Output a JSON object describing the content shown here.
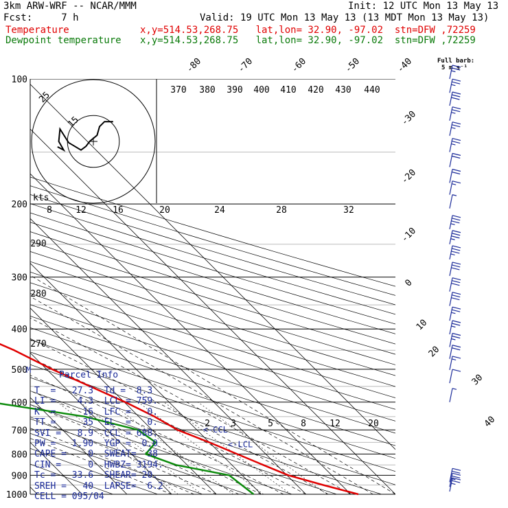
{
  "header": {
    "model": "3km ARW-WRF -- NCAR/MMM",
    "init": "Init: 12 UTC Mon 13 May 13",
    "fcst": "Fcst:     7 h",
    "valid": "Valid: 19 UTC Mon 13 May 13 (13 MDT Mon 13 May 13)",
    "temp_label": "Temperature",
    "temp_loc": "x,y=514.53,268.75   lat,lon= 32.90, -97.02  stn=DFW ,72259",
    "dew_label": "Dewpoint temperature",
    "dew_loc": "x,y=514.53,268.75   lat,lon= 32.90, -97.02  stn=DFW ,72259",
    "barb_title": "Full barb:",
    "barb_units": "5 m s⁻¹"
  },
  "colors": {
    "temperature": "#e00000",
    "dewpoint": "#0a8a0a",
    "info": "#1a2a99",
    "barbs": "#1a2a99"
  },
  "chart_data": {
    "type": "skew-t",
    "pressure_levels": [
      100,
      200,
      300,
      400,
      500,
      600,
      700,
      800,
      900,
      1000
    ],
    "isotherm_labels": [
      {
        "t": -80,
        "text": "-80"
      },
      {
        "t": -70,
        "text": "-70"
      },
      {
        "t": -60,
        "text": "-60"
      },
      {
        "t": -50,
        "text": "-50"
      },
      {
        "t": -40,
        "text": "-40"
      },
      {
        "t": -30,
        "text": "-30"
      },
      {
        "t": -20,
        "text": "-20"
      },
      {
        "t": -10,
        "text": "-10"
      },
      {
        "t": 0,
        "text": "0"
      },
      {
        "t": 10,
        "text": "10"
      },
      {
        "t": 20,
        "text": "20"
      },
      {
        "t": 30,
        "text": "30"
      },
      {
        "t": 40,
        "text": "40"
      }
    ],
    "theta_labels": [
      "370",
      "380",
      "390",
      "400",
      "410",
      "420",
      "430",
      "440"
    ],
    "theta_side_labels": [
      "290",
      "280",
      "270"
    ],
    "mixing_ratio_labels": [
      "2",
      "3",
      "5",
      "8",
      "12",
      "20"
    ],
    "hodograph": {
      "ring_labels": [
        "25",
        "15"
      ],
      "speed_scale_title": "kts",
      "speed_scale": [
        "8",
        "12",
        "16",
        "20",
        "24",
        "28",
        "32"
      ],
      "trace_kts": [
        [
          -14.5,
          -2.2
        ],
        [
          -12,
          -3.5
        ],
        [
          -14,
          0
        ],
        [
          -13.5,
          5
        ],
        [
          -10,
          -0.5
        ],
        [
          -5,
          -3.5
        ],
        [
          -3,
          -2
        ],
        [
          -1.5,
          0
        ],
        [
          1.5,
          2.5
        ],
        [
          2.5,
          6
        ],
        [
          4.5,
          8
        ],
        [
          8,
          8
        ]
      ]
    },
    "temperature": [
      {
        "p": 1000,
        "t": 31.7
      },
      {
        "p": 950,
        "t": 25.9
      },
      {
        "p": 900,
        "t": 20.3
      },
      {
        "p": 850,
        "t": 17.0
      },
      {
        "p": 800,
        "t": 13.6
      },
      {
        "p": 750,
        "t": 10.0
      },
      {
        "p": 700,
        "t": 5.7
      },
      {
        "p": 650,
        "t": 3.5
      },
      {
        "p": 600,
        "t": 0.2
      },
      {
        "p": 550,
        "t": -4.1
      },
      {
        "p": 500,
        "t": -8.8
      },
      {
        "p": 450,
        "t": -13.0
      },
      {
        "p": 400,
        "t": -19.3
      },
      {
        "p": 350,
        "t": -25.8
      },
      {
        "p": 300,
        "t": -34.0
      },
      {
        "p": 250,
        "t": -43.1
      },
      {
        "p": 225,
        "t": -49.3
      },
      {
        "p": 200,
        "t": -56.7
      },
      {
        "p": 175,
        "t": -57.5
      },
      {
        "p": 150,
        "t": -59.9
      },
      {
        "p": 125,
        "t": -62.7
      },
      {
        "p": 100,
        "t": -65.8
      }
    ],
    "dewpoint": [
      {
        "p": 1000,
        "t": 8.3
      },
      {
        "p": 900,
        "t": 7.1
      },
      {
        "p": 850,
        "t": -2.5
      },
      {
        "p": 800,
        "t": -6.8
      },
      {
        "p": 750,
        "t": -2.0
      },
      {
        "p": 700,
        "t": -3.1
      },
      {
        "p": 650,
        "t": -12.1
      },
      {
        "p": 600,
        "t": -29.8
      },
      {
        "p": 550,
        "t": -35.4
      },
      {
        "p": 500,
        "t": -36.0
      },
      {
        "p": 475,
        "t": -38.2
      },
      {
        "p": 450,
        "t": -44.1
      },
      {
        "p": 400,
        "t": -41.0
      },
      {
        "p": 350,
        "t": -47.6
      },
      {
        "p": 320,
        "t": -57.1
      },
      {
        "p": 290,
        "t": -65.1
      },
      {
        "p": 260,
        "t": -66.7
      },
      {
        "p": 230,
        "t": -70.5
      },
      {
        "p": 200,
        "t": -75.8
      },
      {
        "p": 175,
        "t": -79.1
      },
      {
        "p": 150,
        "t": -81.9
      },
      {
        "p": 125,
        "t": -85.5
      },
      {
        "p": 100,
        "t": -88.8
      }
    ],
    "annotations": [
      {
        "p": 710,
        "t": 10.8,
        "text": "<-CCL"
      },
      {
        "p": 770,
        "t": 13.1,
        "text": "<-LCL"
      },
      {
        "p": 510,
        "t": -15.4,
        "text": "M"
      }
    ],
    "wind_barbs": [
      {
        "p": 100,
        "speed": 12.5,
        "flags": 0,
        "full": 2,
        "half": 1
      },
      {
        "p": 108,
        "speed": 12.5,
        "flags": 0,
        "full": 2,
        "half": 1
      },
      {
        "p": 116,
        "speed": 15,
        "flags": 0,
        "full": 3,
        "half": 0
      },
      {
        "p": 126,
        "speed": 12.5,
        "flags": 0,
        "full": 2,
        "half": 1
      },
      {
        "p": 137,
        "speed": 12.5,
        "flags": 0,
        "full": 2,
        "half": 1
      },
      {
        "p": 150,
        "speed": 12.5,
        "flags": 0,
        "full": 2,
        "half": 1
      },
      {
        "p": 163,
        "speed": 10,
        "flags": 0,
        "full": 2,
        "half": 0
      },
      {
        "p": 178,
        "speed": 10,
        "flags": 0,
        "full": 2,
        "half": 0
      },
      {
        "p": 190,
        "speed": 7.5,
        "flags": 0,
        "full": 1,
        "half": 1
      },
      {
        "p": 205,
        "speed": 2.5,
        "flags": 0,
        "full": 0,
        "half": 1
      },
      {
        "p": 230,
        "speed": 17.5,
        "flags": 0,
        "full": 3,
        "half": 1
      },
      {
        "p": 250,
        "speed": 17.5,
        "flags": 0,
        "full": 3,
        "half": 1
      },
      {
        "p": 272,
        "speed": 17.5,
        "flags": 0,
        "full": 3,
        "half": 1
      },
      {
        "p": 298,
        "speed": 15,
        "flags": 0,
        "full": 3,
        "half": 0
      },
      {
        "p": 325,
        "speed": 15,
        "flags": 0,
        "full": 3,
        "half": 0
      },
      {
        "p": 352,
        "speed": 15,
        "flags": 0,
        "full": 3,
        "half": 0
      },
      {
        "p": 382,
        "speed": 12.5,
        "flags": 0,
        "full": 2,
        "half": 1
      },
      {
        "p": 412,
        "speed": 12.5,
        "flags": 0,
        "full": 2,
        "half": 1
      },
      {
        "p": 442,
        "speed": 12.5,
        "flags": 0,
        "full": 2,
        "half": 1
      },
      {
        "p": 472,
        "speed": 10,
        "flags": 0,
        "full": 2,
        "half": 0
      },
      {
        "p": 502,
        "speed": 7.5,
        "flags": 0,
        "full": 1,
        "half": 1
      },
      {
        "p": 540,
        "speed": 5,
        "flags": 0,
        "full": 1,
        "half": 0
      },
      {
        "p": 600,
        "speed": 2.5,
        "flags": 0,
        "full": 0,
        "half": 1
      },
      {
        "p": 935,
        "speed": 10,
        "flags": 0,
        "full": 2,
        "half": 0
      },
      {
        "p": 960,
        "speed": 12.5,
        "flags": 0,
        "full": 2,
        "half": 1
      },
      {
        "p": 985,
        "speed": 12.5,
        "flags": 0,
        "full": 2,
        "half": 1
      }
    ]
  },
  "parcel_info": {
    "title": "Parcel Info",
    "rows": [
      "T  =   27.3  Td =  8.3",
      "LI =    4.3  LCL = 759.",
      "K  =     16  LFC =   0.",
      "TT =     35  EL  =   0.",
      "SVI =   8.9  CCL = 688.",
      "PW =   1.90  YGP =  0.0",
      "CAPE =    0  SWEAT=  38",
      "CIN =     0  HWBZ= 3194.",
      "Tc =   33.6  SHEAR= 20.",
      "SREH =   40  LAPSE=  6.2",
      "CELL = 095/04"
    ]
  }
}
